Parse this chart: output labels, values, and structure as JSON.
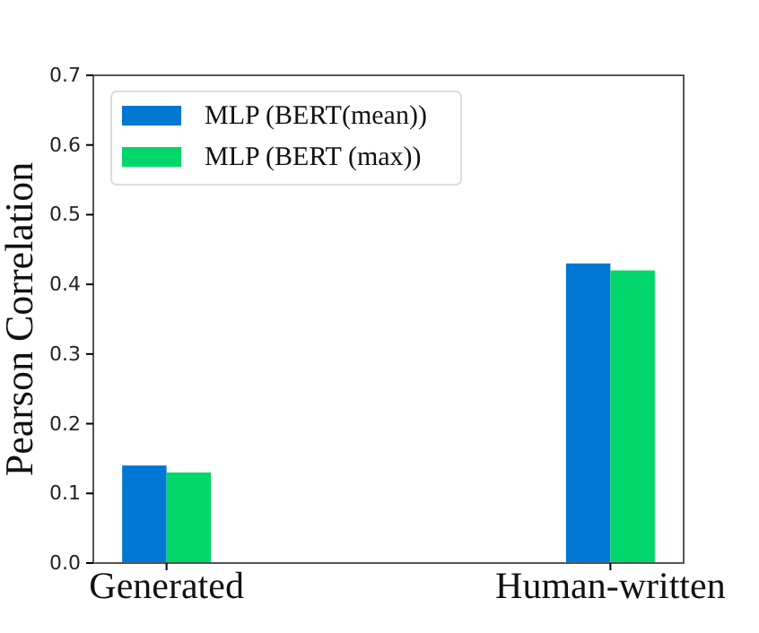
{
  "chart_data": {
    "type": "bar",
    "ylabel": "Pearson Correlation",
    "categories": [
      "Generated",
      "Human-written"
    ],
    "series": [
      {
        "name": "MLP (BERT(mean))",
        "color": "#0077d3",
        "values": [
          0.14,
          0.43
        ]
      },
      {
        "name": "MLP (BERT (max))",
        "color": "#00d66a",
        "values": [
          0.13,
          0.42
        ]
      }
    ],
    "ylim": [
      0,
      0.7
    ],
    "yticks": [
      {
        "value": 0,
        "label": "0.0"
      },
      0.1,
      0.2,
      0.3,
      0.4,
      0.5,
      0.6,
      0.7
    ],
    "grid": false,
    "legend": "top left"
  }
}
